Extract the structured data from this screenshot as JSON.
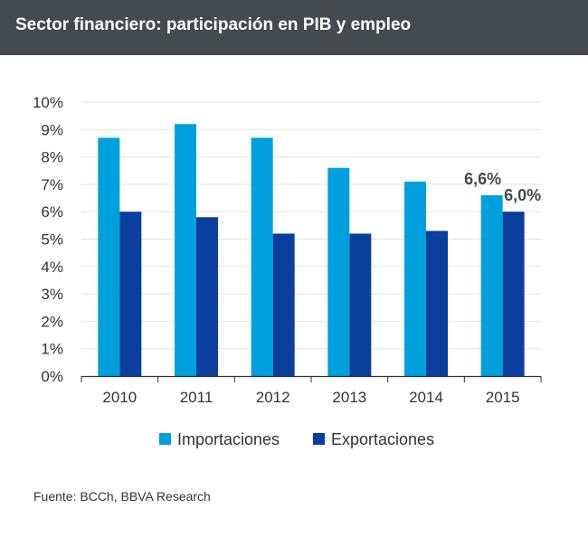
{
  "header": {
    "title": "Sector financiero: participación en PIB y empleo"
  },
  "source": "Fuente: BCCh, BBVA Research",
  "colors": {
    "header_bg": "#454a4f",
    "importaciones": "#00a0df",
    "exportaciones": "#0a3f9e",
    "grid": "#e2e2e2",
    "axis": "#333333"
  },
  "chart_data": {
    "type": "bar",
    "title": "Sector financiero: participación en PIB y empleo",
    "xlabel": "",
    "ylabel": "",
    "categories": [
      "2010",
      "2011",
      "2012",
      "2013",
      "2014",
      "2015"
    ],
    "ylim": [
      0,
      10
    ],
    "yticks": [
      0,
      1,
      2,
      3,
      4,
      5,
      6,
      7,
      8,
      9,
      10
    ],
    "ytick_labels": [
      "0%",
      "1%",
      "2%",
      "3%",
      "4%",
      "5%",
      "6%",
      "7%",
      "8%",
      "9%",
      "10%"
    ],
    "grid": true,
    "legend": "bottom",
    "series": [
      {
        "name": "Importaciones",
        "color": "#00a0df",
        "values": [
          8.7,
          9.2,
          8.7,
          7.6,
          7.1,
          6.6
        ]
      },
      {
        "name": "Exportaciones",
        "color": "#0a3f9e",
        "values": [
          6.0,
          5.8,
          5.2,
          5.2,
          5.3,
          6.0
        ]
      }
    ],
    "annotations": [
      {
        "series": 0,
        "category": "2015",
        "text": "6,6%"
      },
      {
        "series": 1,
        "category": "2015",
        "text": "6,0%"
      }
    ]
  }
}
